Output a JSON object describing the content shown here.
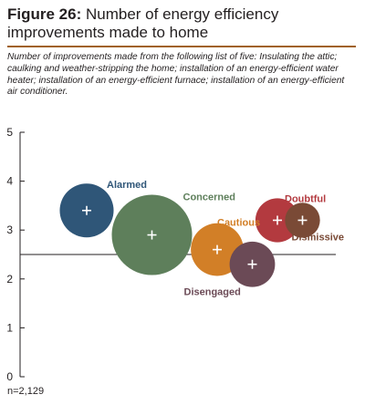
{
  "figure": {
    "label": "Figure 26:",
    "title": "Number of energy efficiency improvements made to home",
    "subtitle": "Number of improvements made from the following list of five: Insulating the attic; caulking and weather-stripping the home; installation of an energy-efficient water heater; installation of an energy-efficient furnace; installation of an energy-efficient air conditioner.",
    "note": "n=2,129"
  },
  "chart_data": {
    "type": "scatter",
    "title": "Number of energy efficiency improvements made to home",
    "xlabel": "",
    "ylabel": "",
    "ylim": [
      0,
      5
    ],
    "yticks": [
      0,
      1,
      2,
      3,
      4,
      5
    ],
    "reference_line": 2.5,
    "grid": false,
    "marker_symbol": "+",
    "points": [
      {
        "name": "Alarmed",
        "x": 1.0,
        "y": 3.4,
        "size": 0.45,
        "color": "#2f5678"
      },
      {
        "name": "Concerned",
        "x": 2.3,
        "y": 2.9,
        "size": 1.0,
        "color": "#5e7f5b"
      },
      {
        "name": "Cautious",
        "x": 3.6,
        "y": 2.6,
        "size": 0.43,
        "color": "#d27f27"
      },
      {
        "name": "Disengaged",
        "x": 4.3,
        "y": 2.3,
        "size": 0.32,
        "color": "#6b4a56"
      },
      {
        "name": "Doubtful",
        "x": 4.8,
        "y": 3.2,
        "size": 0.3,
        "color": "#b33a3f"
      },
      {
        "name": "Dismissive",
        "x": 5.3,
        "y": 3.2,
        "size": 0.19,
        "color": "#7a4a36"
      }
    ]
  }
}
